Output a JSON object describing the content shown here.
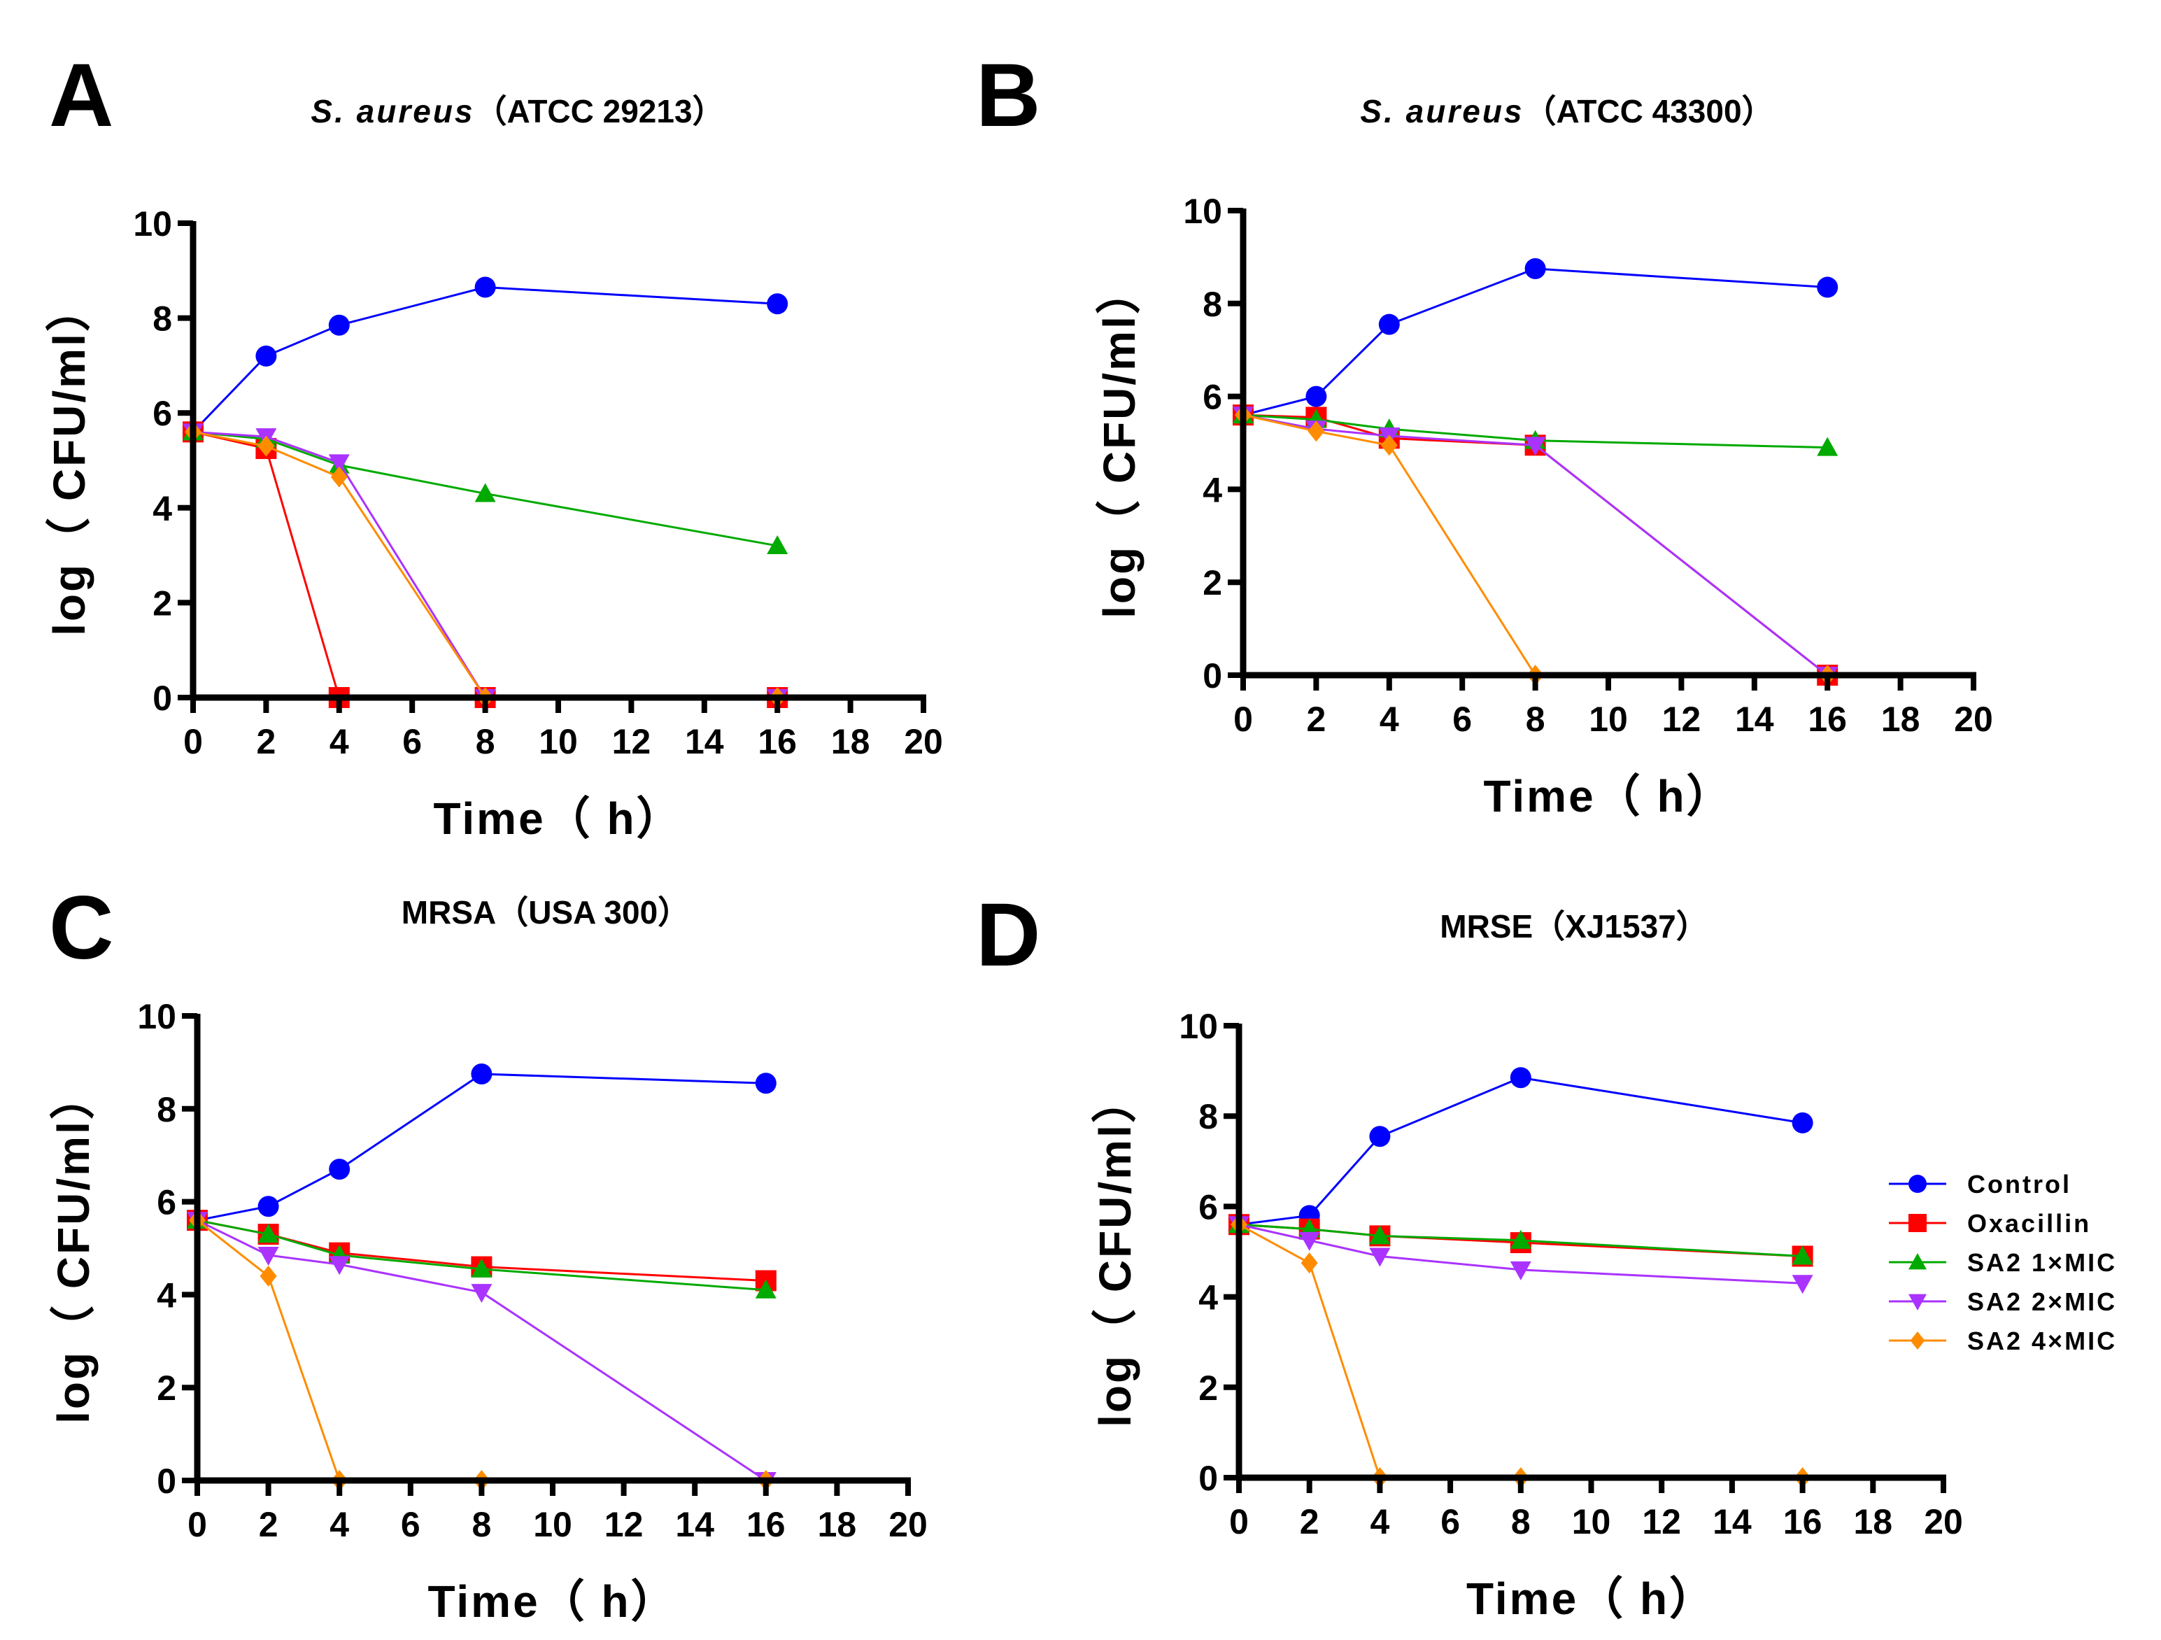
{
  "legend": {
    "placement": "right",
    "items": [
      {
        "label": "Control",
        "color": "#0000FF",
        "marker": "circle"
      },
      {
        "label": "Oxacillin",
        "color": "#FF0000",
        "marker": "square"
      },
      {
        "label": "SA2 1×MIC",
        "color": "#00AA00",
        "marker": "triangle-up"
      },
      {
        "label": "SA2 2×MIC",
        "color": "#AA33FF",
        "marker": "triangle-down"
      },
      {
        "label": "SA2 4×MIC",
        "color": "#FF8C00",
        "marker": "diamond"
      }
    ]
  },
  "chart_data": [
    {
      "type": "line",
      "letter": "A",
      "title_italic": "S. aureus",
      "title_rest": "（ATCC 29213）",
      "xlabel": "Time（ h）",
      "ylabel": "log（ CFU/ml）",
      "xlim": [
        0,
        20
      ],
      "ylim": [
        0,
        10
      ],
      "xticks": [
        "0",
        "2",
        "4",
        "6",
        "8",
        "10",
        "12",
        "14",
        "16",
        "18",
        "20"
      ],
      "yticks": [
        "0",
        "2",
        "4",
        "6",
        "8",
        "10"
      ],
      "x": [
        0,
        2,
        4,
        8,
        16
      ],
      "series": [
        {
          "name": "Control",
          "values": [
            5.6,
            7.2,
            7.85,
            8.65,
            8.3
          ]
        },
        {
          "name": "Oxacillin",
          "values": [
            5.6,
            5.25,
            0,
            0,
            0
          ]
        },
        {
          "name": "SA2 1×MIC",
          "values": [
            5.6,
            5.45,
            4.9,
            4.3,
            3.2
          ]
        },
        {
          "name": "SA2 2×MIC",
          "values": [
            5.6,
            5.5,
            4.95,
            0,
            0
          ]
        },
        {
          "name": "SA2 4×MIC",
          "values": [
            5.6,
            5.3,
            4.65,
            0,
            0
          ]
        }
      ]
    },
    {
      "type": "line",
      "letter": "B",
      "title_italic": "S. aureus",
      "title_rest": "（ATCC 43300）",
      "xlabel": "Time（ h）",
      "ylabel": "log（ CFU/ml）",
      "xlim": [
        0,
        20
      ],
      "ylim": [
        0,
        10
      ],
      "xticks": [
        "0",
        "2",
        "4",
        "6",
        "8",
        "10",
        "12",
        "14",
        "16",
        "18",
        "20"
      ],
      "yticks": [
        "0",
        "2",
        "4",
        "6",
        "8",
        "10"
      ],
      "x": [
        0,
        2,
        4,
        8,
        16
      ],
      "series": [
        {
          "name": "Control",
          "values": [
            5.6,
            6.0,
            7.55,
            8.75,
            8.35
          ]
        },
        {
          "name": "Oxacillin",
          "values": [
            5.6,
            5.55,
            5.1,
            4.95,
            0
          ]
        },
        {
          "name": "SA2 1×MIC",
          "values": [
            5.6,
            5.5,
            5.3,
            5.05,
            4.9
          ]
        },
        {
          "name": "SA2 2×MIC",
          "values": [
            5.6,
            5.3,
            5.15,
            4.95,
            0
          ]
        },
        {
          "name": "SA2 4×MIC",
          "values": [
            5.6,
            5.25,
            4.95,
            0,
            0
          ]
        }
      ]
    },
    {
      "type": "line",
      "letter": "C",
      "title_italic": "",
      "title_rest": "MRSA（USA 300）",
      "xlabel": "Time（ h）",
      "ylabel": "log（ CFU/ml）",
      "xlim": [
        0,
        20
      ],
      "ylim": [
        0,
        10
      ],
      "xticks": [
        "0",
        "2",
        "4",
        "6",
        "8",
        "10",
        "12",
        "14",
        "16",
        "18",
        "20"
      ],
      "yticks": [
        "0",
        "2",
        "4",
        "6",
        "8",
        "10"
      ],
      "x": [
        0,
        2,
        4,
        8,
        16
      ],
      "series": [
        {
          "name": "Control",
          "values": [
            5.6,
            5.9,
            6.7,
            8.75,
            8.55
          ]
        },
        {
          "name": "Oxacillin",
          "values": [
            5.6,
            5.3,
            4.9,
            4.6,
            4.3
          ]
        },
        {
          "name": "SA2 1×MIC",
          "values": [
            5.6,
            5.3,
            4.85,
            4.55,
            4.1
          ]
        },
        {
          "name": "SA2 2×MIC",
          "values": [
            5.6,
            4.85,
            4.65,
            4.05,
            0
          ]
        },
        {
          "name": "SA2 4×MIC",
          "values": [
            5.6,
            4.4,
            0,
            0,
            0
          ]
        }
      ]
    },
    {
      "type": "line",
      "letter": "D",
      "title_italic": "",
      "title_rest": "MRSE（XJ1537）",
      "xlabel": "Time（ h）",
      "ylabel": "log（ CFU/ml）",
      "xlim": [
        0,
        20
      ],
      "ylim": [
        0,
        10
      ],
      "xticks": [
        "0",
        "2",
        "4",
        "6",
        "8",
        "10",
        "12",
        "14",
        "16",
        "18",
        "20"
      ],
      "yticks": [
        "0",
        "2",
        "4",
        "6",
        "8",
        "10"
      ],
      "x": [
        0,
        2,
        4,
        8,
        16
      ],
      "series": [
        {
          "name": "Control",
          "values": [
            5.6,
            5.8,
            7.55,
            8.85,
            7.85
          ]
        },
        {
          "name": "Oxacillin",
          "values": [
            5.6,
            5.5,
            5.35,
            5.2,
            4.9
          ]
        },
        {
          "name": "SA2 1×MIC",
          "values": [
            5.6,
            5.5,
            5.35,
            5.25,
            4.9
          ]
        },
        {
          "name": "SA2 2×MIC",
          "values": [
            5.6,
            5.25,
            4.9,
            4.6,
            4.3
          ]
        },
        {
          "name": "SA2 4×MIC",
          "values": [
            5.6,
            4.75,
            0,
            0,
            0
          ]
        }
      ]
    }
  ]
}
